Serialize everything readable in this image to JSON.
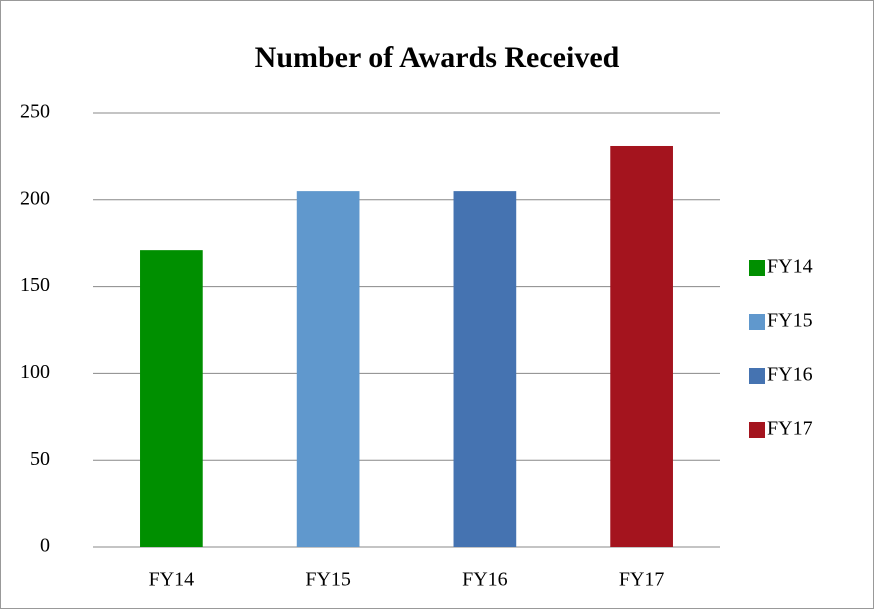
{
  "chart_data": {
    "type": "bar",
    "title": "Number of Awards Received",
    "categories": [
      "FY14",
      "FY15",
      "FY16",
      "FY17"
    ],
    "values": [
      171,
      205,
      205,
      231
    ],
    "colors": [
      "#008f00",
      "#6098cd",
      "#4573b1",
      "#a4141e"
    ],
    "ylim": [
      0,
      250
    ],
    "yticks": [
      0,
      50,
      100,
      150,
      200,
      250
    ],
    "grid": true,
    "legend": "right"
  }
}
